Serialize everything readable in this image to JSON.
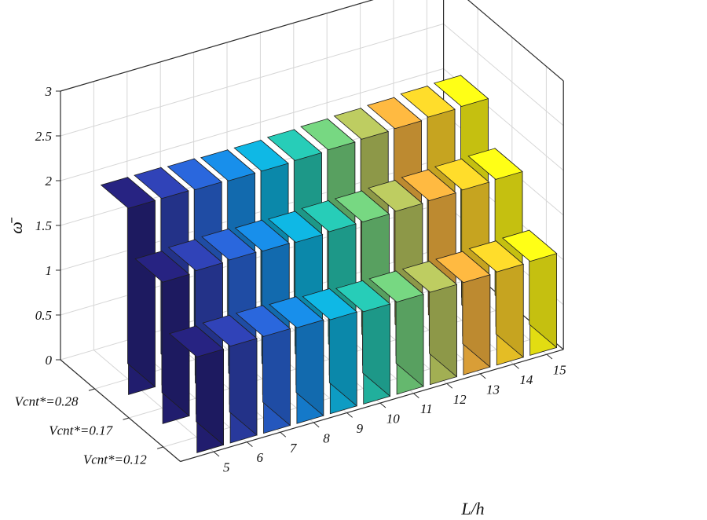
{
  "chart_data": {
    "type": "bar3d",
    "title": "",
    "xlabel": "L/h",
    "ylabel": "",
    "zlabel": "ω̄",
    "x": [
      5,
      6,
      7,
      8,
      9,
      10,
      11,
      12,
      13,
      14,
      15
    ],
    "zlim": [
      0,
      3
    ],
    "z_ticks": [
      "0",
      "0.5",
      "1",
      "1.5",
      "2",
      "2.5",
      "3"
    ],
    "grid": true,
    "colormap": "parula",
    "series": [
      {
        "name": "Vcnt*=0.28",
        "values": [
          2.08,
          2.08,
          2.07,
          2.06,
          2.06,
          2.07,
          2.08,
          2.09,
          2.1,
          2.12,
          2.13
        ]
      },
      {
        "name": "Vcnt*=0.17",
        "values": [
          1.58,
          1.6,
          1.61,
          1.6,
          1.59,
          1.6,
          1.6,
          1.61,
          1.62,
          1.63,
          1.64
        ]
      },
      {
        "name": "Vcnt*=0.12",
        "values": [
          1.07,
          1.08,
          1.08,
          1.07,
          1.05,
          1.03,
          1.03,
          1.03,
          1.03,
          1.04,
          1.05
        ]
      }
    ]
  }
}
